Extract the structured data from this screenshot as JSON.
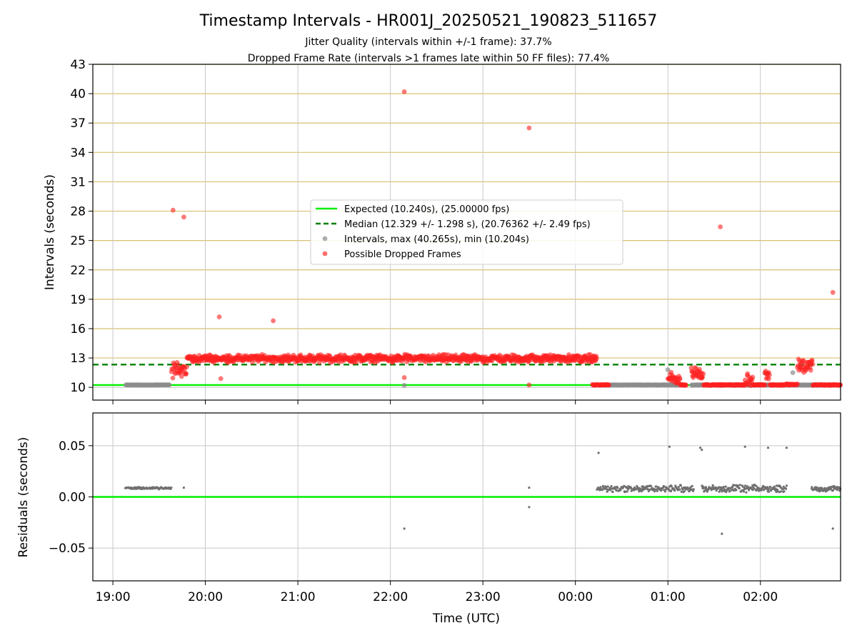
{
  "figure": {
    "title": "Timestamp Intervals - HR001J_20250521_190823_511657",
    "subtitle_1": "Jitter Quality (intervals within +/-1 frame): 37.7%",
    "subtitle_2": "Dropped Frame Rate (intervals >1 frames late within 50 FF files): 77.4%",
    "xlabel": "Time (UTC)"
  },
  "colors": {
    "expected": "#00ee00",
    "median": "#008000",
    "intervals": "#8c8c8c",
    "dropped": "#ff2020",
    "hgrid_top": "#d8c070",
    "grid": "#c8c8c8",
    "residual_points": "#707070"
  },
  "chart_data": [
    {
      "type": "scatter",
      "ylabel": "Intervals (seconds)",
      "xlim": [
        "18:47",
        "02:52"
      ],
      "ylim": [
        8.7,
        43
      ],
      "x_ticks": [
        "19:00",
        "20:00",
        "21:00",
        "22:00",
        "23:00",
        "00:00",
        "01:00",
        "02:00"
      ],
      "y_ticks": [
        10,
        13,
        16,
        19,
        22,
        25,
        28,
        31,
        34,
        37,
        40,
        43
      ],
      "grid": true,
      "legend_position": "center",
      "legend": [
        "Expected (10.240s), (25.00000 fps)",
        "Median (12.329 +/- 1.298 s), (20.76362 +/- 2.49 fps)",
        "Intervals, max (40.265s), min (10.204s)",
        "Possible Dropped Frames"
      ],
      "expected_line": 10.24,
      "median_line": 12.329,
      "series": [
        {
          "name": "Intervals, max (40.265s), min (10.204s)",
          "bands": [
            {
              "start": "19:08",
              "end": "19:37",
              "y": 10.25,
              "jitter": 0.02
            },
            {
              "start": "00:18",
              "end": "01:10",
              "y": 10.25,
              "jitter": 0.02
            },
            {
              "start": "01:15",
              "end": "02:40",
              "y": 10.25,
              "jitter": 0.02
            },
            {
              "start": "02:33",
              "end": "02:52",
              "y": 10.25,
              "jitter": 0.02
            }
          ],
          "points": [
            {
              "x": "22:09",
              "y": 10.2
            },
            {
              "x": "01:00",
              "y": 11.8
            },
            {
              "x": "02:03",
              "y": 11.5
            },
            {
              "x": "02:21",
              "y": 11.5
            },
            {
              "x": "02:26",
              "y": 12.2
            }
          ]
        },
        {
          "name": "Possible Dropped Frames",
          "bands": [
            {
              "start": "19:38",
              "end": "19:48",
              "y": 11.8,
              "jitter": 0.9
            },
            {
              "start": "19:48",
              "end": "00:14",
              "y": 12.95,
              "jitter": 0.45
            },
            {
              "start": "00:11",
              "end": "00:22",
              "y": 10.25,
              "jitter": 0.05
            },
            {
              "start": "01:00",
              "end": "01:08",
              "y": 10.9,
              "jitter": 0.8
            },
            {
              "start": "01:08",
              "end": "01:12",
              "y": 10.25,
              "jitter": 0.05
            },
            {
              "start": "01:15",
              "end": "01:23",
              "y": 11.5,
              "jitter": 0.9
            },
            {
              "start": "01:23",
              "end": "01:50",
              "y": 10.25,
              "jitter": 0.05
            },
            {
              "start": "01:50",
              "end": "01:55",
              "y": 10.8,
              "jitter": 0.8
            },
            {
              "start": "01:55",
              "end": "02:03",
              "y": 10.25,
              "jitter": 0.05
            },
            {
              "start": "02:03",
              "end": "02:06",
              "y": 11.3,
              "jitter": 0.8
            },
            {
              "start": "02:06",
              "end": "02:16",
              "y": 10.25,
              "jitter": 0.05
            },
            {
              "start": "02:16",
              "end": "02:24",
              "y": 10.3,
              "jitter": 0.1
            },
            {
              "start": "02:24",
              "end": "02:34",
              "y": 12.2,
              "jitter": 0.8
            },
            {
              "start": "02:34",
              "end": "02:52",
              "y": 10.25,
              "jitter": 0.05
            }
          ],
          "points": [
            {
              "x": "19:39",
              "y": 28.1
            },
            {
              "x": "19:46",
              "y": 27.4
            },
            {
              "x": "20:09",
              "y": 17.2
            },
            {
              "x": "20:10",
              "y": 10.9
            },
            {
              "x": "20:44",
              "y": 16.8
            },
            {
              "x": "22:09",
              "y": 40.2
            },
            {
              "x": "22:09",
              "y": 11.0
            },
            {
              "x": "23:30",
              "y": 36.5
            },
            {
              "x": "23:30",
              "y": 10.25
            },
            {
              "x": "01:34",
              "y": 26.4
            },
            {
              "x": "02:47",
              "y": 19.7
            }
          ]
        }
      ]
    },
    {
      "type": "scatter",
      "ylabel": "Residuals (seconds)",
      "xlim": [
        "18:47",
        "02:52"
      ],
      "ylim": [
        -0.082,
        0.082
      ],
      "y_ticks": [
        0.05,
        0.0,
        -0.05
      ],
      "y_tick_labels": [
        "0.05",
        "0.00",
        "−0.05"
      ],
      "grid": true,
      "zero_line": 0.0,
      "series": [
        {
          "name": "residuals",
          "bands": [
            {
              "start": "19:08",
              "end": "19:38",
              "y": 0.0085,
              "jitter": 0.0012
            },
            {
              "start": "00:14",
              "end": "01:00",
              "y": 0.008,
              "jitter": 0.004
            },
            {
              "start": "01:00",
              "end": "01:17",
              "y": 0.008,
              "jitter": 0.004
            },
            {
              "start": "01:22",
              "end": "02:17",
              "y": 0.008,
              "jitter": 0.004
            },
            {
              "start": "02:33",
              "end": "02:52",
              "y": 0.008,
              "jitter": 0.003
            }
          ],
          "points": [
            {
              "x": "19:46",
              "y": 0.009
            },
            {
              "x": "22:09",
              "y": -0.031
            },
            {
              "x": "23:30",
              "y": 0.009
            },
            {
              "x": "23:30",
              "y": -0.01
            },
            {
              "x": "00:15",
              "y": 0.043
            },
            {
              "x": "01:01",
              "y": 0.049
            },
            {
              "x": "01:21",
              "y": 0.048
            },
            {
              "x": "01:22",
              "y": 0.046
            },
            {
              "x": "01:35",
              "y": -0.036
            },
            {
              "x": "01:50",
              "y": 0.049
            },
            {
              "x": "02:05",
              "y": 0.048
            },
            {
              "x": "02:17",
              "y": 0.048
            },
            {
              "x": "02:47",
              "y": -0.031
            }
          ]
        }
      ]
    }
  ]
}
